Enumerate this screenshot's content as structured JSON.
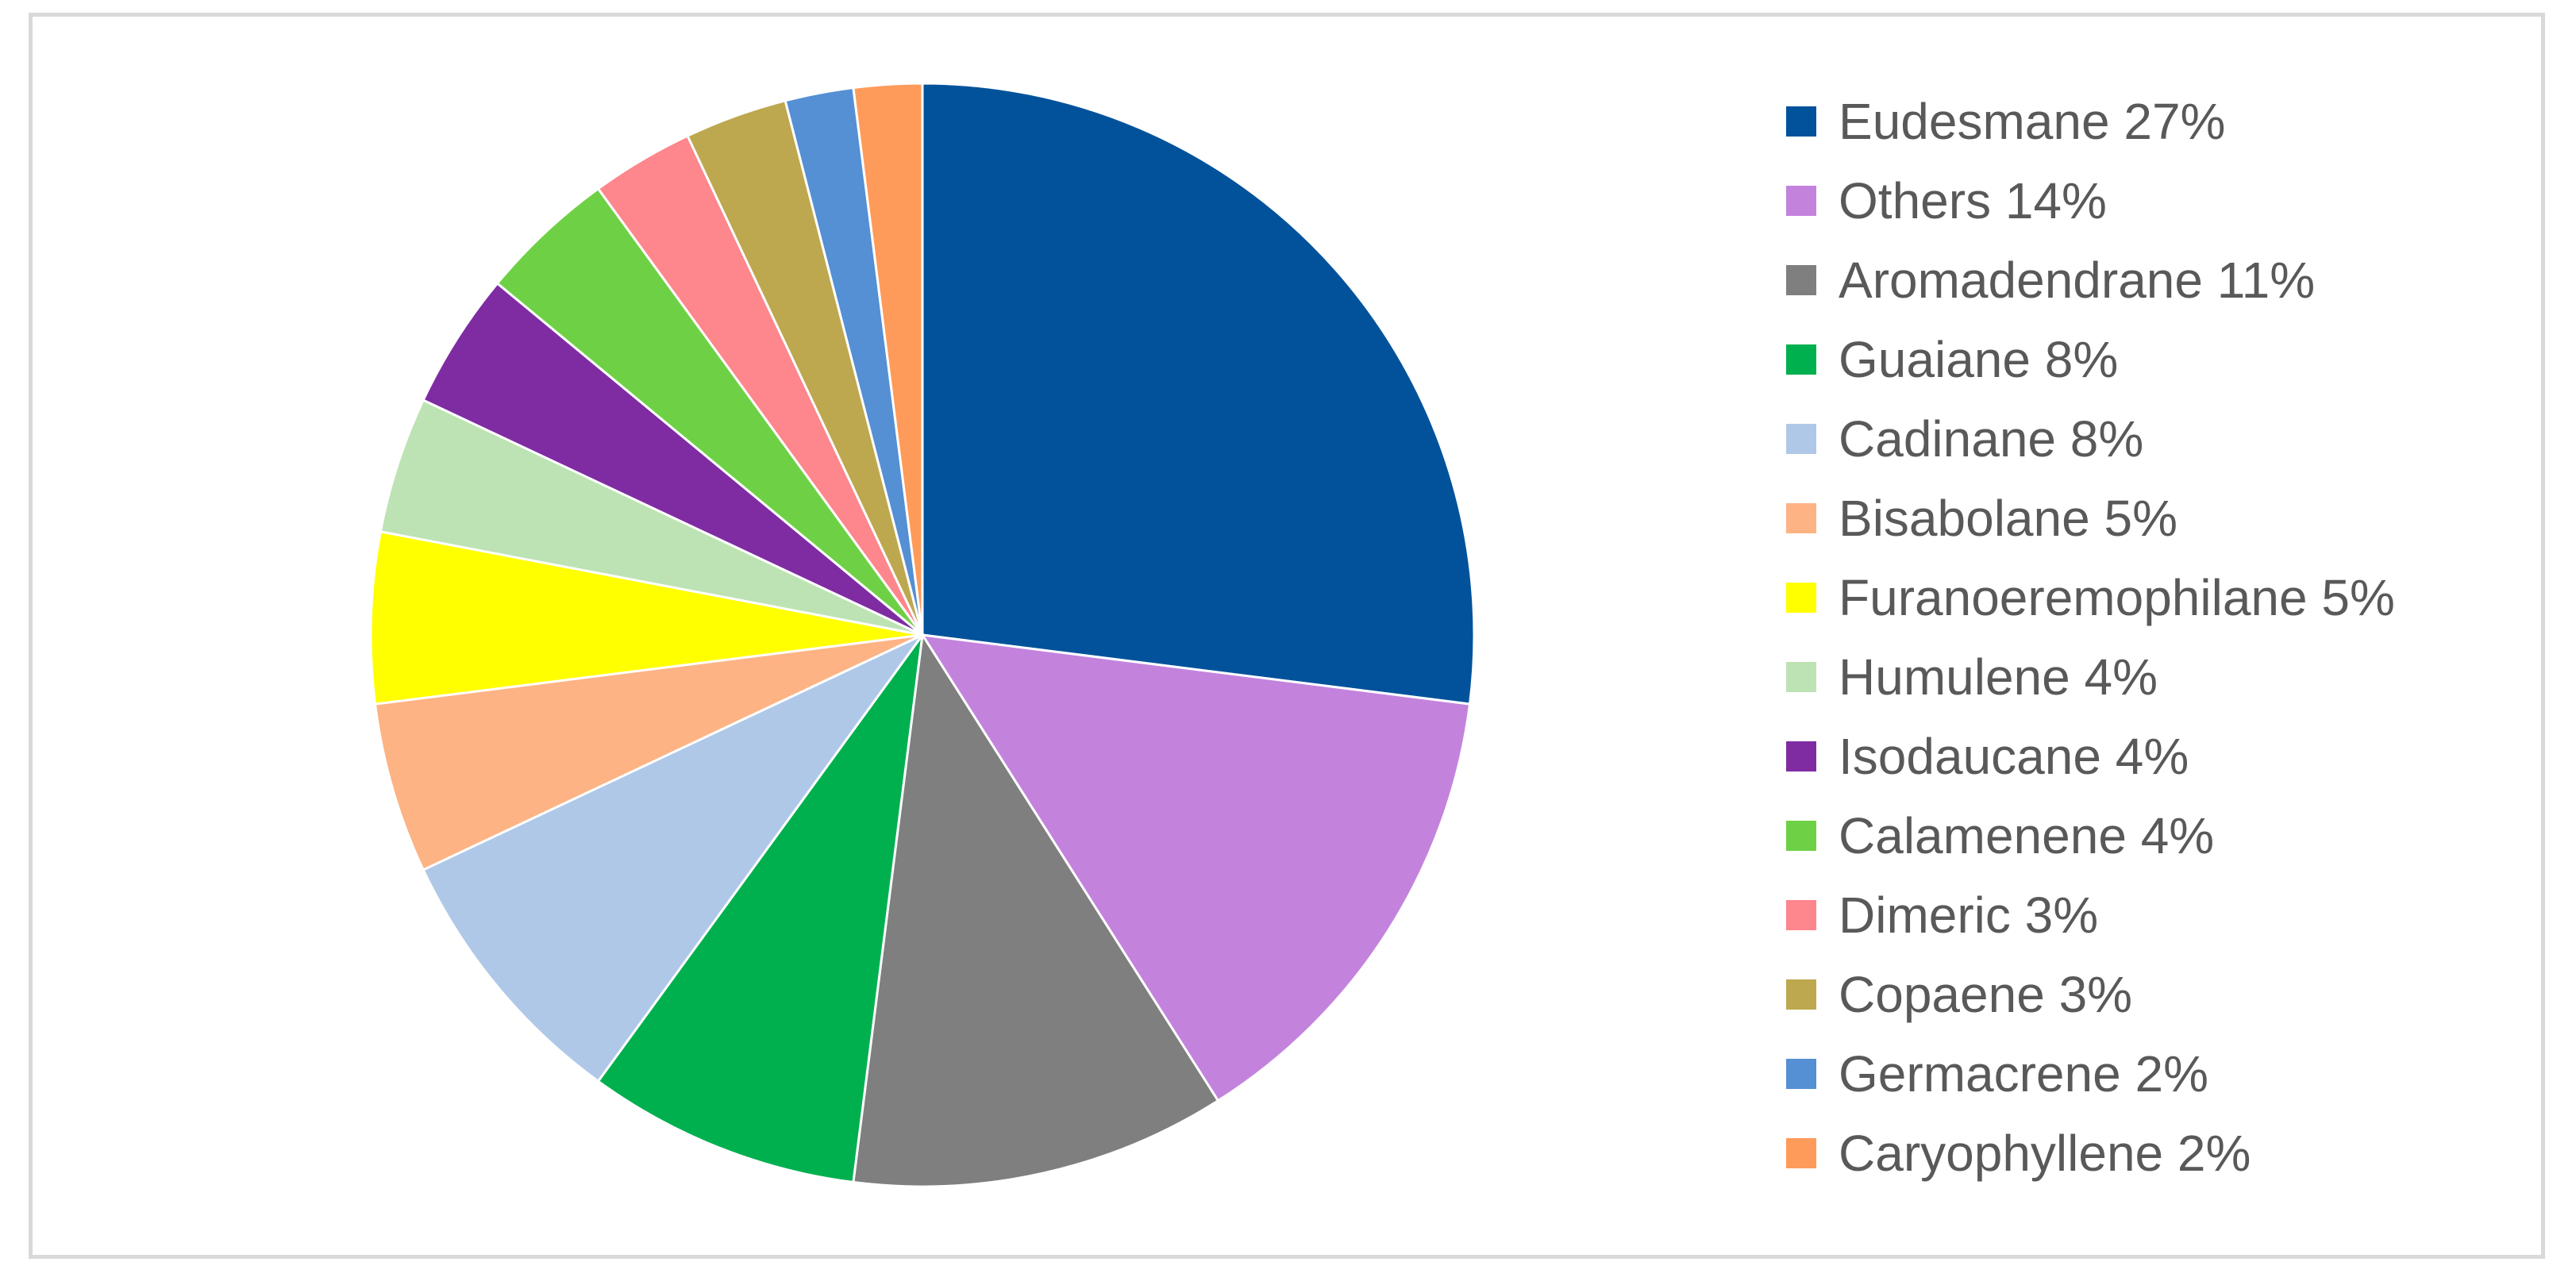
{
  "chart_data": {
    "type": "pie",
    "title": "",
    "start_angle_deg": 0,
    "direction": "clockwise",
    "legend_position": "right",
    "slices": [
      {
        "label": "Eudesmane 27%",
        "value": 27,
        "color": "#01529B"
      },
      {
        "label": "Others 14%",
        "value": 14,
        "color": "#C383DD"
      },
      {
        "label": "Aromadendrane 11%",
        "value": 11,
        "color": "#7F7F7F"
      },
      {
        "label": "Guaiane 8%",
        "value": 8,
        "color": "#00B04F"
      },
      {
        "label": "Cadinane 8%",
        "value": 8,
        "color": "#AFC8E8"
      },
      {
        "label": "Bisabolane 5%",
        "value": 5,
        "color": "#FDB384"
      },
      {
        "label": "Furanoeremophilane 5%",
        "value": 5,
        "color": "#FFFF00"
      },
      {
        "label": "Humulene 4%",
        "value": 4,
        "color": "#BDE3B4"
      },
      {
        "label": "Isodaucane 4%",
        "value": 4,
        "color": "#7F2CA3"
      },
      {
        "label": "Calamenene 4%",
        "value": 4,
        "color": "#6ED145"
      },
      {
        "label": "Dimeric 3%",
        "value": 3,
        "color": "#FE868D"
      },
      {
        "label": "Copaene 3%",
        "value": 3,
        "color": "#BDA84F"
      },
      {
        "label": "Germacrene 2%",
        "value": 2,
        "color": "#558FD4"
      },
      {
        "label": "Caryophyllene 2%",
        "value": 2,
        "color": "#FE9B5A"
      }
    ]
  }
}
